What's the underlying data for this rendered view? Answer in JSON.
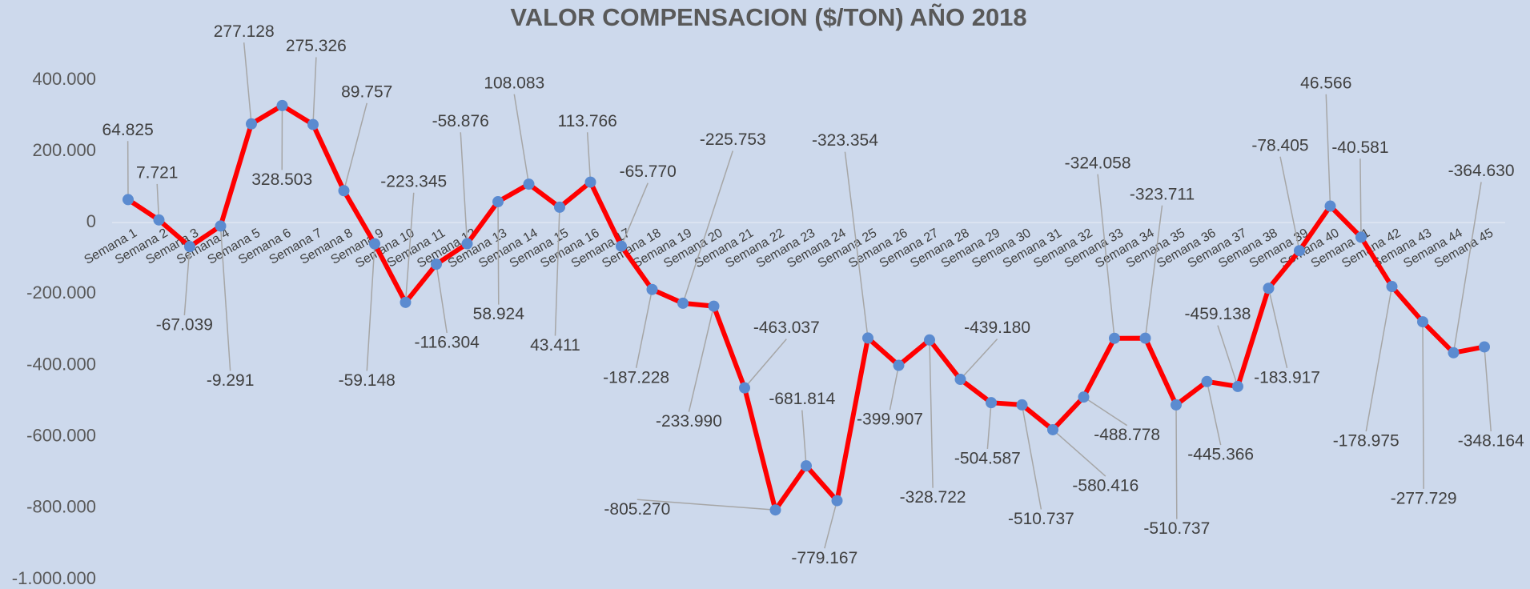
{
  "chart_data": {
    "type": "line",
    "title": "VALOR COMPENSACION ($/TON) AÑO 2018",
    "categories": [
      "Semana 1",
      "Semana 2",
      "Semana 3",
      "Semana 4",
      "Semana 5",
      "Semana 6",
      "Semana 7",
      "Semana 8",
      "Semana 9",
      "Semana 10",
      "Semana 11",
      "Semana 12",
      "Semana 13",
      "Semana 14",
      "Semana 15",
      "Semana 16",
      "Semana 17",
      "Semana 18",
      "Semana 19",
      "Semana 20",
      "Semana 21",
      "Semana 22",
      "Semana 23",
      "Semana 24",
      "Semana 25",
      "Semana 26",
      "Semana 27",
      "Semana 28",
      "Semana 29",
      "Semana 30",
      "Semana 31",
      "Semana 32",
      "Semana 33",
      "Semana 34",
      "Semana 35",
      "Semana 36",
      "Semana 37",
      "Semana 38",
      "Semana 39",
      "Semana 40",
      "Semana 41",
      "Semana 42",
      "Semana 43",
      "Semana 44",
      "Semana 45"
    ],
    "series": [
      {
        "name": "Valor compensación",
        "color": "#ff0000",
        "marker_color": "#5b8bd0",
        "values": [
          64825,
          7721,
          -67039,
          -9291,
          277128,
          328503,
          275326,
          89757,
          -59148,
          -223345,
          -116304,
          -58876,
          58924,
          108083,
          43411,
          113766,
          -65770,
          -187228,
          -225753,
          -233990,
          -463037,
          -805270,
          -681814,
          -779167,
          -323354,
          -399907,
          -328722,
          -439180,
          -504587,
          -510737,
          -580416,
          -488778,
          -324058,
          -323711,
          -510737,
          -445366,
          -459138,
          -183917,
          -78405,
          46566,
          -40581,
          -178975,
          -277729,
          -364630,
          -348164
        ],
        "value_labels": [
          "64.825",
          "7.721",
          "-67.039",
          "-9.291",
          "277.128",
          "328.503",
          "275.326",
          "89.757",
          "-59.148",
          "-223.345",
          "-116.304",
          "-58.876",
          "58.924",
          "108.083",
          "43.411",
          "113.766",
          "-65.770",
          "-187.228",
          "-225.753",
          "-233.990",
          "-463.037",
          "-805.270",
          "-681.814",
          "-779.167",
          "-323.354",
          "-399.907",
          "-328.722",
          "-439.180",
          "-504.587",
          "-510.737",
          "-580.416",
          "-488.778",
          "-324.058",
          "-323.711",
          "-510.737",
          "-445.366",
          "-459.138",
          "-183.917",
          "-78.405",
          "46.566",
          "-40.581",
          "-178.975",
          "-277.729",
          "-364.630",
          "-348.164"
        ]
      }
    ],
    "ylim": [
      -1000000,
      400000
    ],
    "yticks": [
      {
        "value": -1000000,
        "label": "-1.000.000"
      },
      {
        "value": -800000,
        "label": "-800.000"
      },
      {
        "value": -600000,
        "label": "-600.000"
      },
      {
        "value": -400000,
        "label": "-400.000"
      },
      {
        "value": -200000,
        "label": "-200.000"
      },
      0,
      {
        "value": 200000,
        "label": "200.000"
      },
      {
        "value": 400000,
        "label": "400.000"
      }
    ]
  }
}
